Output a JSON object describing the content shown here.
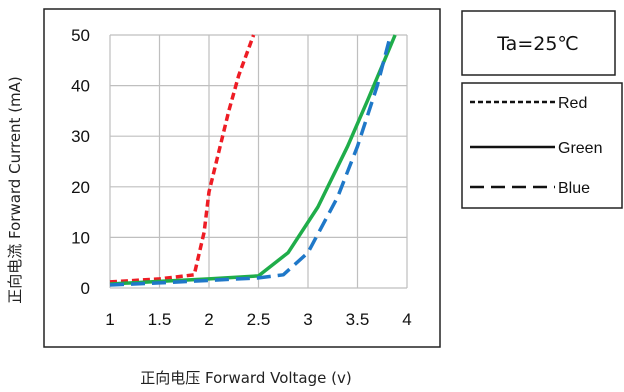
{
  "chart_data": {
    "type": "line",
    "xlabel": "正向电压 Forward Voltage (v)",
    "ylabel": "正向电流 Forward Current (mA)",
    "xlim": [
      1,
      4
    ],
    "ylim": [
      0,
      50
    ],
    "x_ticks": [
      "1",
      "1.5",
      "2",
      "2.5",
      "3",
      "3.5",
      "4"
    ],
    "y_ticks": [
      "0",
      "10",
      "20",
      "30",
      "40",
      "50"
    ],
    "grid": true,
    "annotation": "Ta=25℃",
    "legend_position": "right",
    "series": [
      {
        "name": "Red",
        "color": "#ee1c24",
        "line_style": "dotted",
        "x": [
          1.0,
          1.5,
          1.85,
          1.95,
          2.0,
          2.1,
          2.2,
          2.3,
          2.45
        ],
        "y": [
          1.2,
          1.8,
          2.6,
          11.0,
          19.0,
          27.0,
          35.0,
          42.0,
          50.0
        ]
      },
      {
        "name": "Green",
        "color": "#1fad4a",
        "line_style": "solid",
        "x": [
          1.0,
          1.5,
          2.0,
          2.5,
          2.8,
          3.1,
          3.4,
          3.6,
          3.75,
          3.88
        ],
        "y": [
          0.8,
          1.3,
          1.8,
          2.4,
          7.0,
          16.0,
          28.0,
          37.0,
          44.0,
          50.0
        ]
      },
      {
        "name": "Blue",
        "color": "#1f78c8",
        "line_style": "dashed",
        "x": [
          1.0,
          1.5,
          2.0,
          2.5,
          2.75,
          3.0,
          3.3,
          3.5,
          3.7,
          3.82
        ],
        "y": [
          0.6,
          1.0,
          1.5,
          2.0,
          2.6,
          7.0,
          18.0,
          28.0,
          40.0,
          49.0
        ]
      }
    ]
  }
}
